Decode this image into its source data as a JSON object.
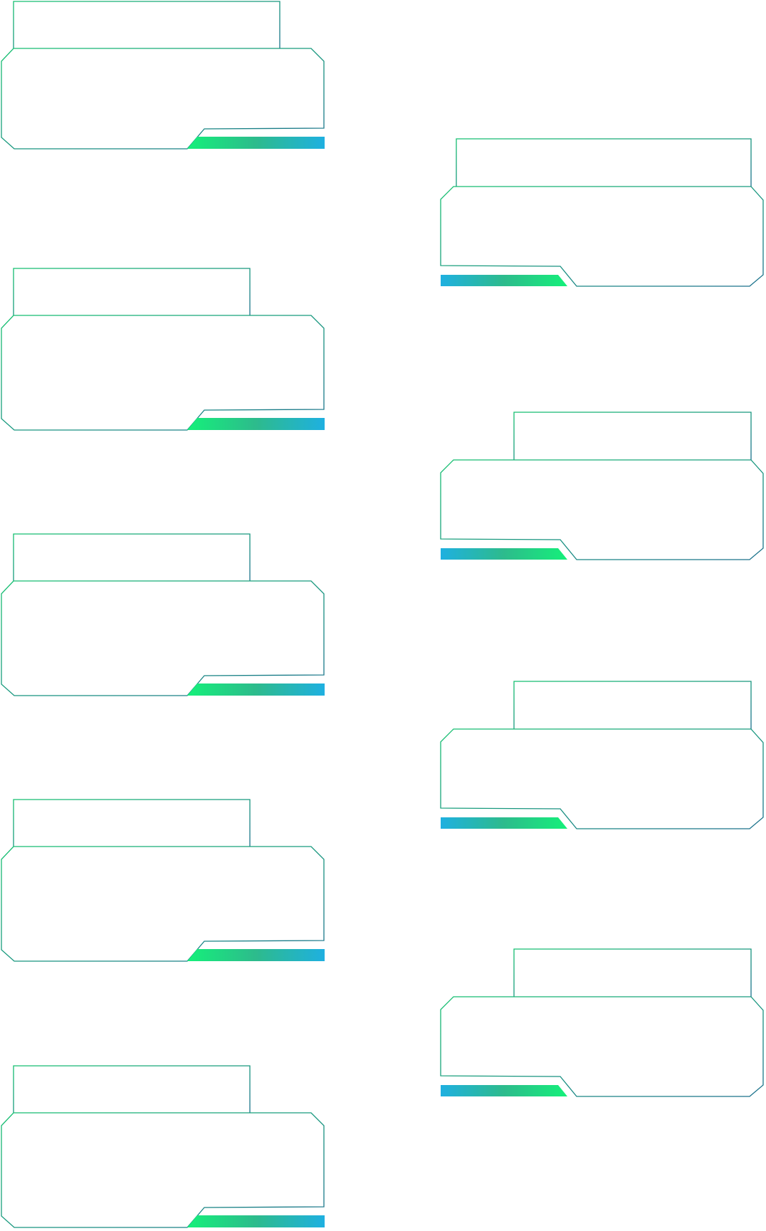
{
  "frames": [
    {
      "id": "left-1",
      "column": "left",
      "orientation": "left",
      "title": "",
      "content": ""
    },
    {
      "id": "left-2",
      "column": "left",
      "orientation": "left",
      "title": "",
      "content": ""
    },
    {
      "id": "left-3",
      "column": "left",
      "orientation": "left",
      "title": "",
      "content": ""
    },
    {
      "id": "left-4",
      "column": "left",
      "orientation": "left",
      "title": "",
      "content": ""
    },
    {
      "id": "left-5",
      "column": "left",
      "orientation": "left",
      "title": "",
      "content": ""
    },
    {
      "id": "right-1",
      "column": "right",
      "orientation": "right",
      "title": "",
      "content": ""
    },
    {
      "id": "right-2",
      "column": "right",
      "orientation": "right",
      "title": "",
      "content": ""
    },
    {
      "id": "right-3",
      "column": "right",
      "orientation": "right",
      "title": "",
      "content": ""
    },
    {
      "id": "right-4",
      "column": "right",
      "orientation": "right",
      "title": "",
      "content": ""
    }
  ],
  "colors": {
    "teal": "#1a7a8a",
    "green": "#15f07a",
    "mid_green": "#2dbb8c",
    "blue": "#1fb0e0",
    "background": "#ffffff"
  }
}
